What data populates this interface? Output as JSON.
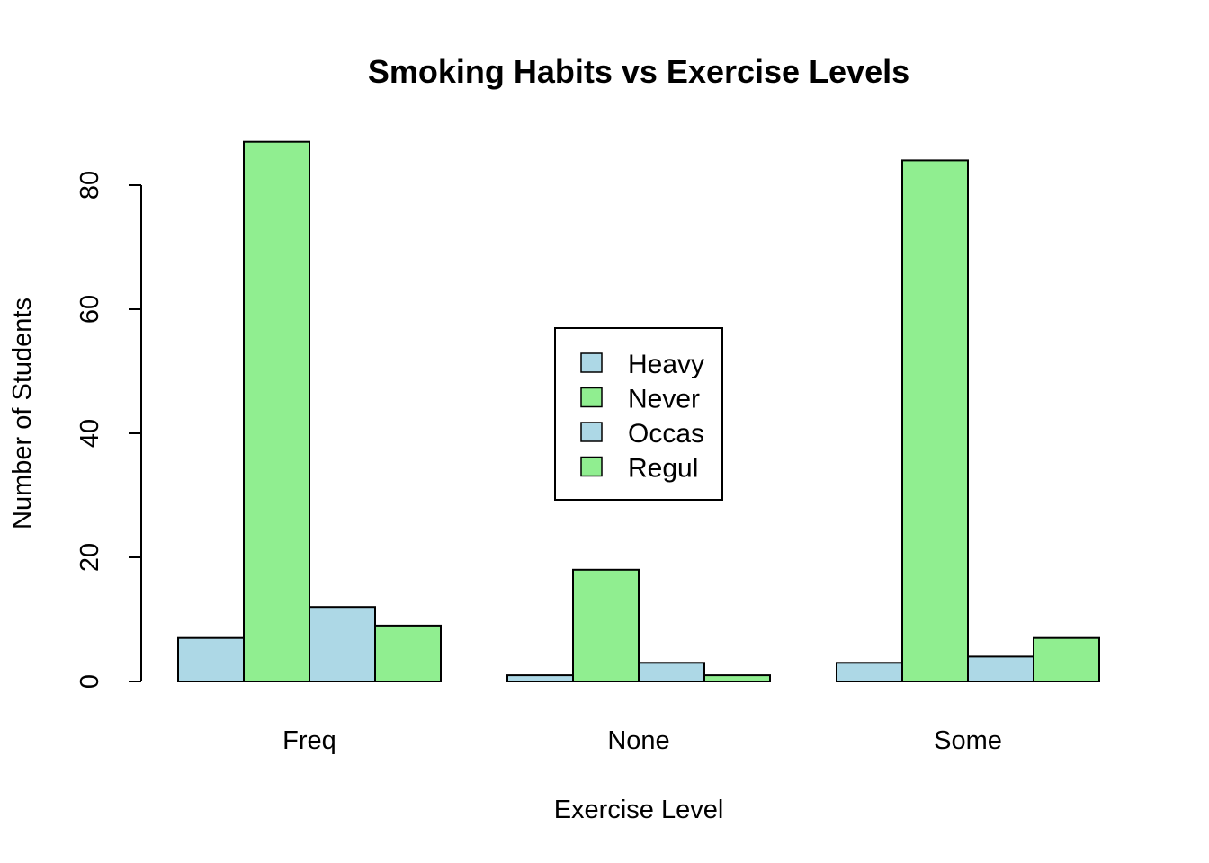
{
  "chart_data": {
    "type": "bar",
    "title": "Smoking Habits vs Exercise Levels",
    "xlabel": "Exercise Level",
    "ylabel": "Number of Students",
    "categories": [
      "Freq",
      "None",
      "Some"
    ],
    "series": [
      {
        "name": "Heavy",
        "values": [
          7,
          1,
          3
        ],
        "color": "#ADD8E6"
      },
      {
        "name": "Never",
        "values": [
          87,
          18,
          84
        ],
        "color": "#90EE90"
      },
      {
        "name": "Occas",
        "values": [
          12,
          3,
          4
        ],
        "color": "#ADD8E6"
      },
      {
        "name": "Regul",
        "values": [
          9,
          1,
          7
        ],
        "color": "#90EE90"
      }
    ],
    "yticks": [
      0,
      20,
      40,
      60,
      80
    ],
    "ylim": [
      0,
      90
    ],
    "legend_position": "center",
    "grid": false
  }
}
